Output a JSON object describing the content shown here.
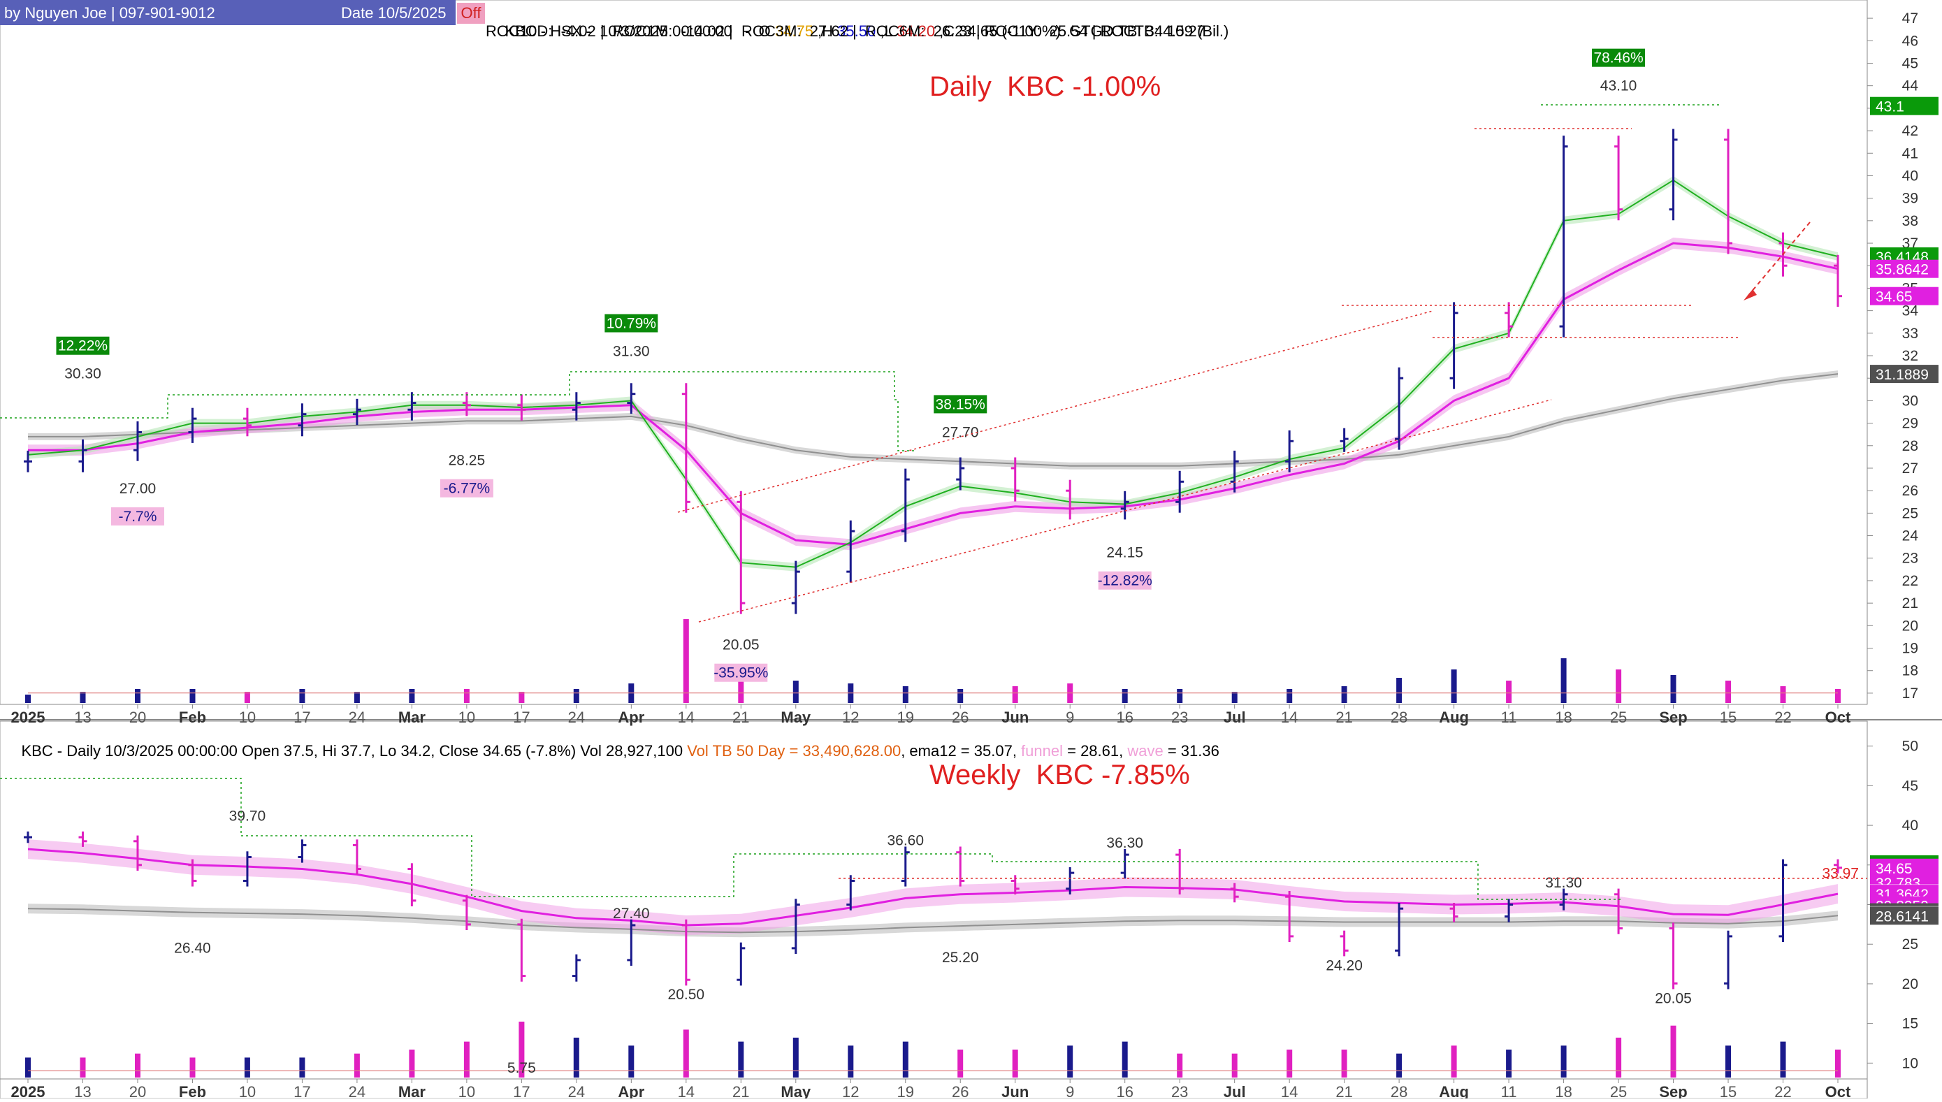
{
  "header": {
    "author": "by Nguyen Joe | 097-901-9012",
    "date": "Date 10/5/2025",
    "off_label": "Off",
    "quote_prefix": "KBC - HSX -  10/3/2025 00:00:00   -  O ",
    "open": "34.75",
    "h_prefix": " ,H ",
    "high": "35.50",
    "l_prefix": " ,L ",
    "low": "34.20",
    "c_prefix": " ,C ",
    "close": "34.65",
    "change_pct": " (-1.00%)",
    "gtgd": "  GTGD TB: 344.59 (Bil.)",
    "roc_line": "ROC10D:  -4.02 |  ROC1M:  -14.02 |  ROC3M:  27.62 |  ROC6M:  26.23 | ROC1Y:  25.54 | ROCTB:  10.27"
  },
  "daily_panel": {
    "title": "Daily  KBC -1.00%",
    "y_ticks": [
      "17",
      "18",
      "19",
      "20",
      "21",
      "22",
      "23",
      "24",
      "25",
      "26",
      "27",
      "28",
      "29",
      "30",
      "31",
      "32",
      "33",
      "34",
      "35",
      "36",
      "37",
      "38",
      "39",
      "40",
      "41",
      "42",
      "43",
      "44",
      "45",
      "46",
      "47"
    ],
    "x_labels": [
      "2025",
      "13",
      "20",
      "Feb",
      "10",
      "17",
      "24",
      "Mar",
      "10",
      "17",
      "24",
      "Apr",
      "14",
      "21",
      "May",
      "12",
      "19",
      "26",
      "Jun",
      "9",
      "16",
      "23",
      "Jul",
      "14",
      "21",
      "28",
      "Aug",
      "11",
      "18",
      "25",
      "Sep",
      "15",
      "22",
      "Oct"
    ],
    "price_tags": [
      {
        "label": "43.1",
        "color": "#0a9a0a"
      },
      {
        "label": "36.4148",
        "color": "#0a9a0a"
      },
      {
        "label": "35.8642",
        "color": "#e020e0"
      },
      {
        "label": "34.65",
        "color": "#e020e0"
      },
      {
        "label": "31.1889",
        "color": "#505050"
      }
    ],
    "annotations": {
      "peaks": [
        "30.30",
        "31.30",
        "27.70",
        "43.10"
      ],
      "troughs": [
        "27.00",
        "28.25",
        "20.05",
        "24.15"
      ],
      "gain_badges": [
        "12.22%",
        "10.79%",
        "38.15%",
        "78.46%"
      ],
      "loss_badges": [
        "-7.7%",
        "-6.77%",
        "-35.95%",
        "-12.82%"
      ]
    }
  },
  "weekly_panel": {
    "status_line_a": "KBC - Daily 10/3/2025 00:00:00 Open 37.5, Hi 37.7, Lo 34.2, Close 34.65 (-7.8%) Vol 28,927,100 ",
    "status_line_b": "Vol TB 50 Day = 33,490,628.00",
    "status_line_c": ", ema12 = 35.07, ",
    "status_line_d": "funnel",
    "status_line_e": " = 28.61, ",
    "status_line_f": "wave",
    "status_line_g": " = 31.36",
    "title": "Weekly  KBC -7.85%",
    "y_ticks": [
      "10",
      "15",
      "20",
      "25",
      "30",
      "35",
      "40",
      "45",
      "50"
    ],
    "x_labels": [
      "2025",
      "13",
      "20",
      "Feb",
      "10",
      "17",
      "24",
      "Mar",
      "10",
      "17",
      "24",
      "Apr",
      "14",
      "21",
      "May",
      "12",
      "19",
      "26",
      "Jun",
      "9",
      "16",
      "23",
      "Jul",
      "14",
      "21",
      "28",
      "Aug",
      "11",
      "18",
      "25",
      "Sep",
      "15",
      "22",
      "Oct"
    ],
    "ref_value": "33.97",
    "price_tags": [
      {
        "label": "35.0693",
        "color": "#0a9a0a"
      },
      {
        "label": "34.65",
        "color": "#e020e0"
      },
      {
        "label": "32.783",
        "color": "#e020e0"
      },
      {
        "label": "31.3642",
        "color": "#ffffff"
      },
      {
        "label": "31.3642",
        "color": "#e020e0"
      },
      {
        "label": "29.8959",
        "color": "#e020e0"
      },
      {
        "label": "29.0196",
        "color": "#505050"
      },
      {
        "label": "28.6141",
        "color": "#ffffff"
      },
      {
        "label": "28.6141",
        "color": "#505050"
      }
    ],
    "annotations": {
      "peaks": [
        "39.70",
        "27.40",
        "36.60",
        "36.30",
        "31.30"
      ],
      "troughs": [
        "26.40",
        "20.50",
        "25.20",
        "24.20",
        "20.05",
        "5.75"
      ]
    }
  },
  "chart_data": [
    {
      "type": "candlestick",
      "title": "Daily  KBC -1.00%",
      "ylim": [
        16.5,
        47.5
      ],
      "x": [
        "2025",
        "13",
        "20",
        "Feb",
        "10",
        "17",
        "24",
        "Mar",
        "10",
        "17",
        "24",
        "Apr",
        "14",
        "21",
        "May",
        "12",
        "19",
        "26",
        "Jun",
        "9",
        "16",
        "23",
        "Jul",
        "14",
        "21",
        "28",
        "Aug",
        "11",
        "18",
        "25",
        "Sep",
        "15",
        "22",
        "Oct"
      ],
      "close": [
        27.3,
        27.8,
        28.6,
        29.2,
        28.9,
        29.4,
        29.6,
        29.9,
        29.8,
        29.6,
        29.9,
        30.3,
        25.5,
        21.0,
        22.4,
        24.2,
        26.5,
        27.0,
        26.0,
        25.2,
        25.5,
        26.4,
        27.3,
        28.2,
        28.3,
        31.0,
        33.9,
        33.3,
        41.3,
        38.5,
        41.6,
        37.0,
        36.0,
        34.65
      ],
      "ema_fast": [
        27.6,
        27.8,
        28.4,
        29.0,
        29.0,
        29.3,
        29.5,
        29.8,
        29.8,
        29.7,
        29.8,
        30.0,
        26.5,
        22.8,
        22.6,
        23.7,
        25.3,
        26.2,
        25.9,
        25.5,
        25.4,
        25.9,
        26.6,
        27.4,
        27.9,
        29.8,
        32.3,
        33.0,
        38.0,
        38.3,
        39.8,
        38.2,
        37.0,
        36.41
      ],
      "ema_slow": [
        27.8,
        27.8,
        28.1,
        28.6,
        28.8,
        29.0,
        29.3,
        29.5,
        29.6,
        29.6,
        29.7,
        29.8,
        27.8,
        25.0,
        23.8,
        23.6,
        24.3,
        25.0,
        25.3,
        25.2,
        25.3,
        25.6,
        26.1,
        26.7,
        27.2,
        28.2,
        30.0,
        31.0,
        34.5,
        35.8,
        37.0,
        36.8,
        36.4,
        35.86
      ],
      "ma_long": [
        28.4,
        28.4,
        28.5,
        28.6,
        28.7,
        28.8,
        28.9,
        29.0,
        29.1,
        29.1,
        29.2,
        29.3,
        28.9,
        28.3,
        27.8,
        27.5,
        27.4,
        27.3,
        27.2,
        27.1,
        27.1,
        27.1,
        27.2,
        27.3,
        27.4,
        27.6,
        28.0,
        28.4,
        29.1,
        29.6,
        30.1,
        30.5,
        30.9,
        31.19
      ],
      "volume": [
        3,
        4,
        5,
        5,
        4,
        5,
        4,
        5,
        5,
        4,
        5,
        7,
        30,
        12,
        8,
        7,
        6,
        5,
        6,
        7,
        5,
        5,
        4,
        5,
        6,
        9,
        12,
        8,
        16,
        12,
        10,
        8,
        6,
        5
      ]
    },
    {
      "type": "candlestick",
      "title": "Weekly  KBC -7.85%",
      "ylim": [
        8,
        52
      ],
      "x": [
        "2025",
        "13",
        "20",
        "Feb",
        "10",
        "17",
        "24",
        "Mar",
        "10",
        "17",
        "24",
        "Apr",
        "14",
        "21",
        "May",
        "12",
        "19",
        "26",
        "Jun",
        "9",
        "16",
        "23",
        "Jul",
        "14",
        "21",
        "28",
        "Aug",
        "11",
        "18",
        "25",
        "Sep",
        "15",
        "22",
        "Oct"
      ],
      "close": [
        38.5,
        38.0,
        35.0,
        33.0,
        36.0,
        37.5,
        34.5,
        30.5,
        27.5,
        21.0,
        23.0,
        27.4,
        20.5,
        24.5,
        30.0,
        33.0,
        36.6,
        33.0,
        32.0,
        34.0,
        36.3,
        32.0,
        31.0,
        26.0,
        24.2,
        29.5,
        28.5,
        30.0,
        31.3,
        27.0,
        20.05,
        26.0,
        35.0,
        34.65
      ],
      "wave": [
        37.0,
        36.5,
        35.8,
        35.0,
        34.8,
        34.5,
        33.8,
        32.6,
        31.0,
        29.2,
        28.3,
        28.0,
        27.4,
        27.6,
        28.6,
        29.6,
        30.8,
        31.3,
        31.5,
        31.8,
        32.2,
        32.1,
        31.9,
        31.1,
        30.4,
        30.2,
        30.0,
        30.1,
        30.3,
        29.8,
        28.8,
        28.7,
        30.0,
        31.36
      ],
      "funnel": [
        29.5,
        29.4,
        29.2,
        29.0,
        28.9,
        28.8,
        28.6,
        28.3,
        27.9,
        27.4,
        27.1,
        26.9,
        26.6,
        26.5,
        26.6,
        26.8,
        27.1,
        27.3,
        27.5,
        27.7,
        27.9,
        28.0,
        28.0,
        27.9,
        27.8,
        27.8,
        27.8,
        27.8,
        27.9,
        27.9,
        27.7,
        27.6,
        27.9,
        28.61
      ],
      "volume": [
        5,
        5,
        6,
        5,
        5,
        5,
        6,
        7,
        9,
        14,
        10,
        8,
        12,
        9,
        10,
        8,
        9,
        7,
        7,
        8,
        9,
        6,
        6,
        7,
        7,
        6,
        8,
        7,
        8,
        10,
        13,
        8,
        9,
        7
      ]
    }
  ]
}
